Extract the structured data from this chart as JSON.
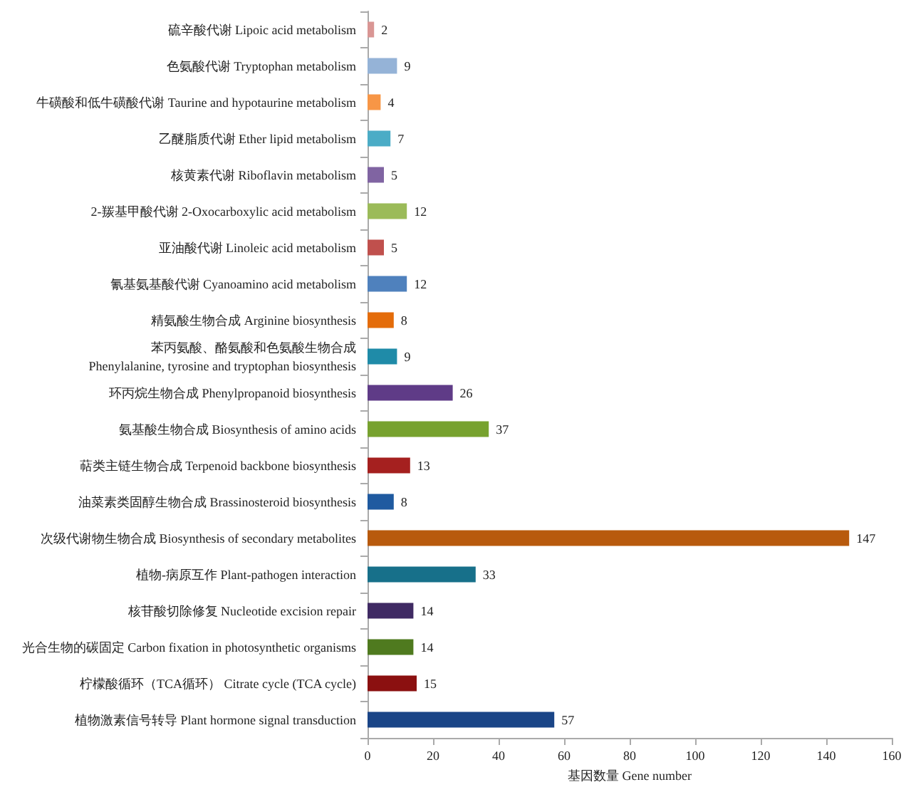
{
  "chart_data": {
    "type": "bar",
    "orientation": "horizontal",
    "xlabel": "基因数量 Gene number",
    "categories": [
      "硫辛酸代谢 Lipoic acid metabolism",
      "色氨酸代谢 Tryptophan metabolism",
      "牛磺酸和低牛磺酸代谢 Taurine and hypotaurine metabolism",
      "乙醚脂质代谢 Ether lipid metabolism",
      "核黄素代谢 Riboflavin metabolism",
      "2-羰基甲酸代谢 2-Oxocarboxylic acid metabolism",
      "亚油酸代谢 Linoleic acid metabolism",
      "氰基氨基酸代谢 Cyanoamino acid metabolism",
      "精氨酸生物合成 Arginine biosynthesis",
      "苯丙氨酸、酪氨酸和色氨酸生物合成\nPhenylalanine, tyrosine and tryptophan biosynthesis",
      "环丙烷生物合成 Phenylpropanoid biosynthesis",
      "氨基酸生物合成 Biosynthesis of amino acids",
      "萜类主链生物合成 Terpenoid backbone biosynthesis",
      "油菜素类固醇生物合成 Brassinosteroid biosynthesis",
      "次级代谢物生物合成 Biosynthesis of secondary metabolites",
      "植物-病原互作 Plant-pathogen interaction",
      "核苷酸切除修复 Nucleotide excision repair",
      "光合生物的碳固定 Carbon fixation in photosynthetic organisms",
      "柠檬酸循环（TCA循环） Citrate cycle (TCA cycle)",
      "植物激素信号转导 Plant hormone signal transduction"
    ],
    "values": [
      2,
      9,
      4,
      7,
      5,
      12,
      5,
      12,
      8,
      9,
      26,
      37,
      13,
      8,
      147,
      33,
      14,
      14,
      15,
      57
    ],
    "colors": [
      "#d99694",
      "#95b3d7",
      "#f79646",
      "#4bacc6",
      "#8064a2",
      "#9bbb59",
      "#c0504d",
      "#4f81bd",
      "#e46c0a",
      "#1f8ba8",
      "#5f3b87",
      "#77a22f",
      "#a5201f",
      "#1f5aa0",
      "#b85a0d",
      "#17708a",
      "#3f2a63",
      "#4f7a1f",
      "#8b1010",
      "#1a4587"
    ],
    "xlim": [
      0,
      160
    ],
    "xticks": [
      0,
      20,
      40,
      60,
      80,
      100,
      120,
      140,
      160
    ],
    "data_labels": true
  }
}
